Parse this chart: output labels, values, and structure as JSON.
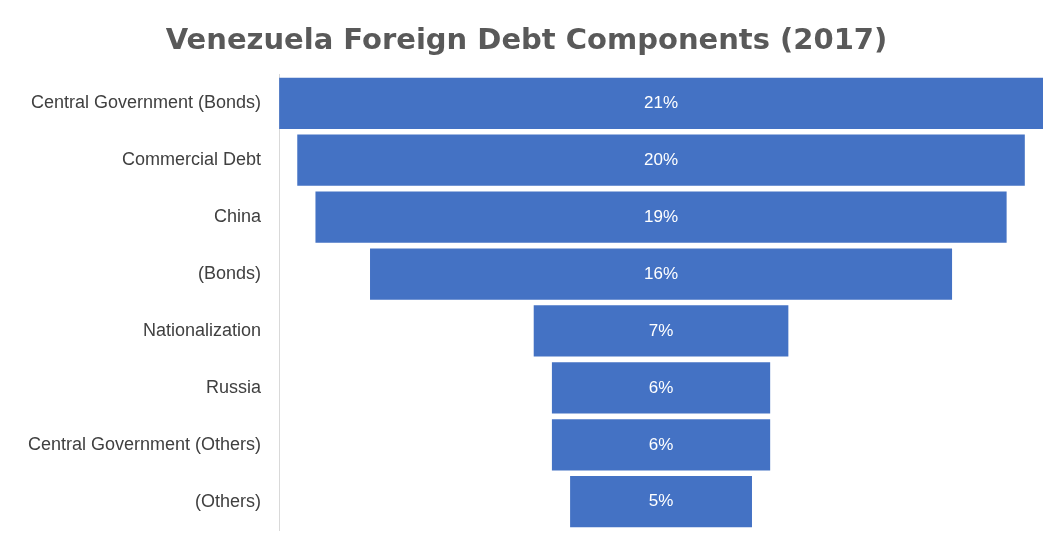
{
  "chart_data": {
    "type": "other",
    "title": "Venezuela Foreign Debt Components (2017)",
    "categories": [
      "Central Government (Bonds)",
      "Commercial Debt",
      "China",
      "(Bonds)",
      "Nationalization",
      "Russia",
      "Central Government (Others)",
      "(Others)"
    ],
    "values": [
      21,
      20,
      19,
      16,
      7,
      6,
      6,
      5
    ],
    "value_labels": [
      "21%",
      "20%",
      "19%",
      "16%",
      "7%",
      "6%",
      "6%",
      "5%"
    ],
    "color": "#4472c4"
  }
}
